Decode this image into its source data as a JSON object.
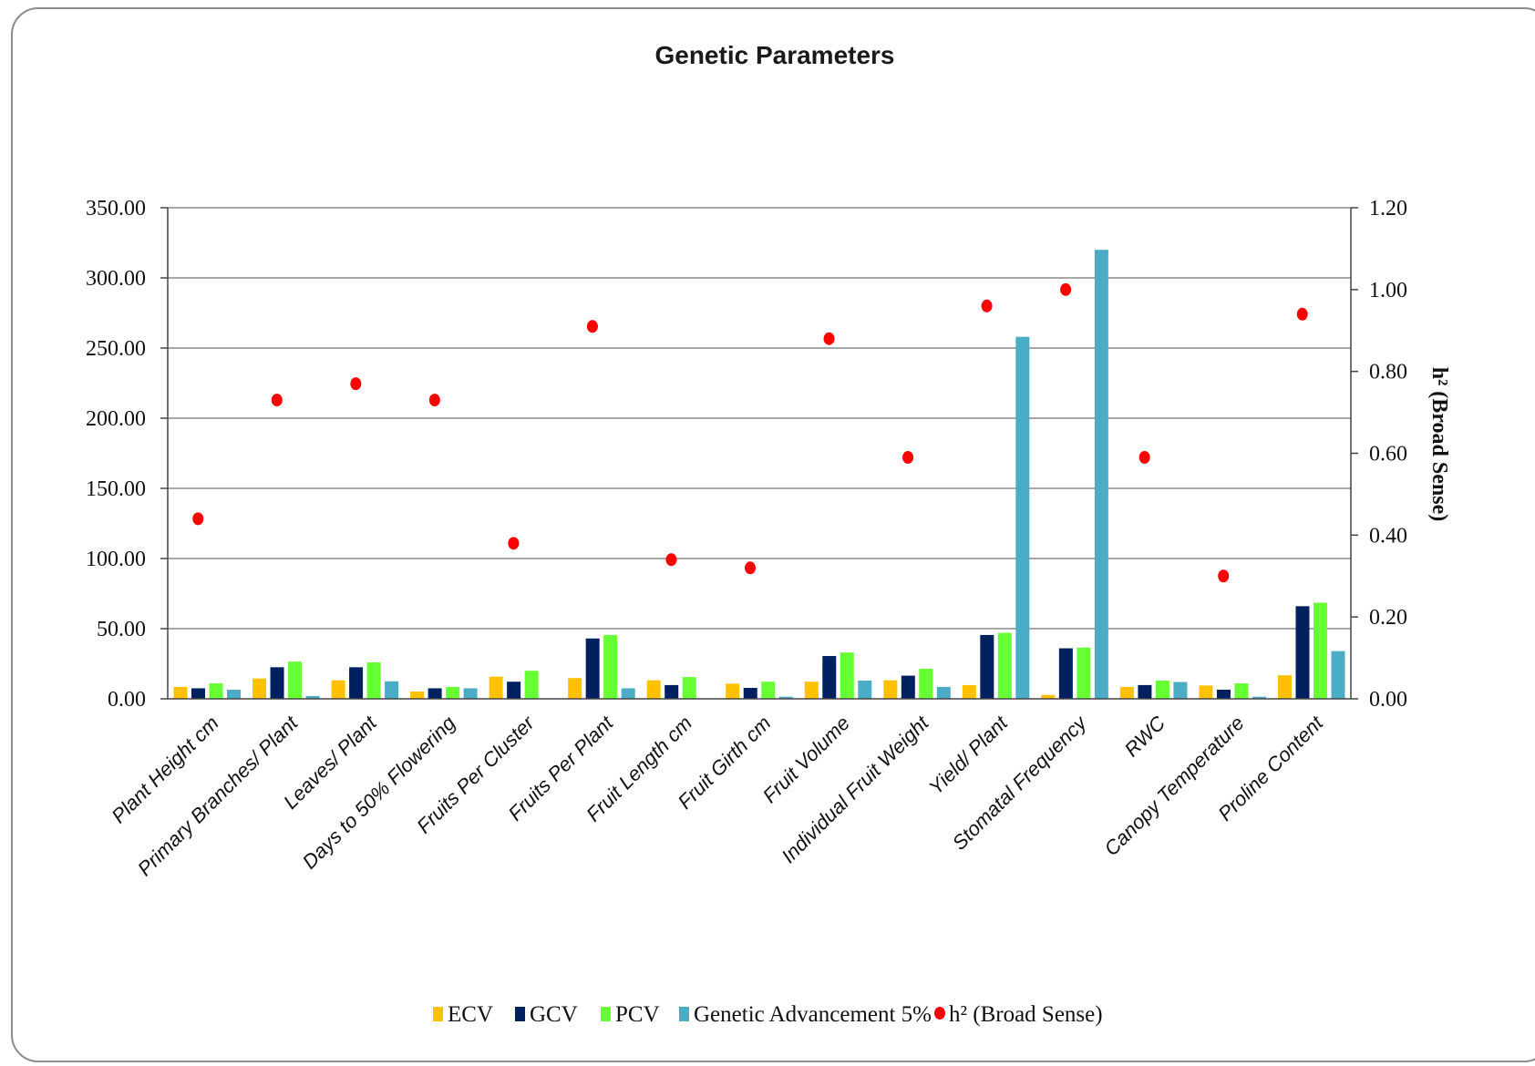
{
  "chart_data": {
    "type": "bar",
    "title": "Genetic Parameters",
    "categories": [
      "Plant Height cm",
      "Primary Branches/ Plant",
      "Leaves/ Plant",
      "Days to 50% Flowering",
      "Fruits Per Cluster",
      "Fruits Per Plant",
      "Fruit Length cm",
      "Fruit Girth cm",
      "Fruit Volume",
      "Individual Fruit Weight",
      "Yield/ Plant",
      "Stomatal Frequency",
      "RWC",
      "Canopy Temperature",
      "Proline Content"
    ],
    "ylim": [
      0,
      350
    ],
    "yticks": [
      "0.00",
      "50.00",
      "100.00",
      "150.00",
      "200.00",
      "250.00",
      "300.00",
      "350.00"
    ],
    "y2lim": [
      0,
      1.2
    ],
    "y2ticks": [
      "0.00",
      "0.20",
      "0.40",
      "0.60",
      "0.80",
      "1.00",
      "1.20"
    ],
    "y2label": "h² (Broad Sense)",
    "grid": true,
    "legend_position": "bottom",
    "series": [
      {
        "name": "ECV",
        "type": "bar",
        "color": "#FFC000",
        "values": [
          8.5,
          14.5,
          13.2,
          5.2,
          15.8,
          14.8,
          13.2,
          10.8,
          12.2,
          13.2,
          9.8,
          2.8,
          8.5,
          9.5,
          16.8
        ]
      },
      {
        "name": "GCV",
        "type": "bar",
        "color": "#002060",
        "values": [
          7.5,
          22.5,
          22.5,
          7.5,
          12.2,
          43.0,
          9.8,
          7.8,
          30.5,
          16.5,
          45.5,
          36.0,
          9.8,
          6.5,
          66.0
        ]
      },
      {
        "name": "PCV",
        "type": "bar",
        "color": "#66FF33",
        "values": [
          11.0,
          26.5,
          26.0,
          8.5,
          20.0,
          45.5,
          15.5,
          12.2,
          33.0,
          21.5,
          47.0,
          36.5,
          13.0,
          11.0,
          68.5
        ]
      },
      {
        "name": "Genetic Advancement 5%",
        "type": "bar",
        "color": "#4BACC6",
        "values": [
          6.5,
          2.0,
          12.5,
          7.5,
          0.0,
          7.5,
          0.0,
          1.5,
          13.0,
          8.5,
          258.0,
          320.0,
          12.0,
          1.5,
          34.0
        ]
      },
      {
        "name": "h² (Broad Sense)",
        "type": "scatter",
        "axis": "secondary",
        "color": "#FF0000",
        "values": [
          0.44,
          0.73,
          0.77,
          0.73,
          0.38,
          0.91,
          0.34,
          0.32,
          0.88,
          0.59,
          0.96,
          1.0,
          0.59,
          0.3,
          0.94
        ]
      }
    ]
  }
}
